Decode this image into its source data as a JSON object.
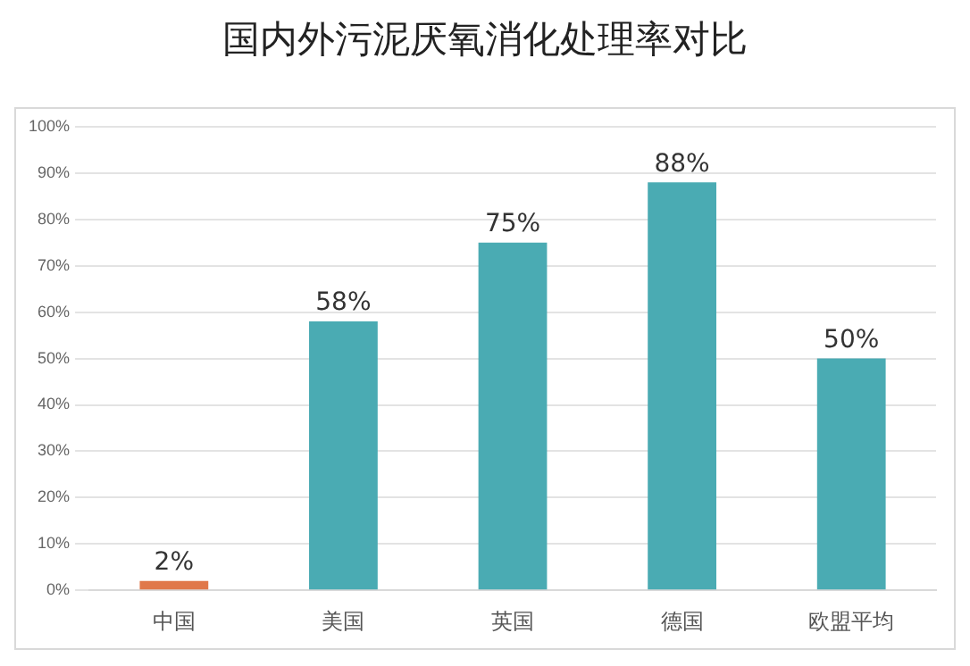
{
  "chart_data": {
    "type": "bar",
    "title": "国内外污泥厌氧消化处理率对比",
    "categories": [
      "中国",
      "美国",
      "英国",
      "德国",
      "欧盟平均"
    ],
    "values": [
      2,
      58,
      75,
      88,
      50
    ],
    "colors": [
      "#e0784a",
      "#4aabb3",
      "#4aabb3",
      "#4aabb3",
      "#4aabb3"
    ],
    "value_labels": [
      "2%",
      "58%",
      "75%",
      "88%",
      "50%"
    ],
    "ylim": [
      0,
      100
    ],
    "yticks": [
      {
        "value": 0,
        "label": "0%"
      },
      {
        "value": 10,
        "label": "10%"
      },
      {
        "value": 20,
        "label": "20%"
      },
      {
        "value": 30,
        "label": "30%"
      },
      {
        "value": 40,
        "label": "40%"
      },
      {
        "value": 50,
        "label": "50%"
      },
      {
        "value": 60,
        "label": "60%"
      },
      {
        "value": 70,
        "label": "70%"
      },
      {
        "value": 80,
        "label": "80%"
      },
      {
        "value": 90,
        "label": "90%"
      },
      {
        "value": 100,
        "label": "100%"
      }
    ],
    "grid": "y",
    "legend": false
  }
}
